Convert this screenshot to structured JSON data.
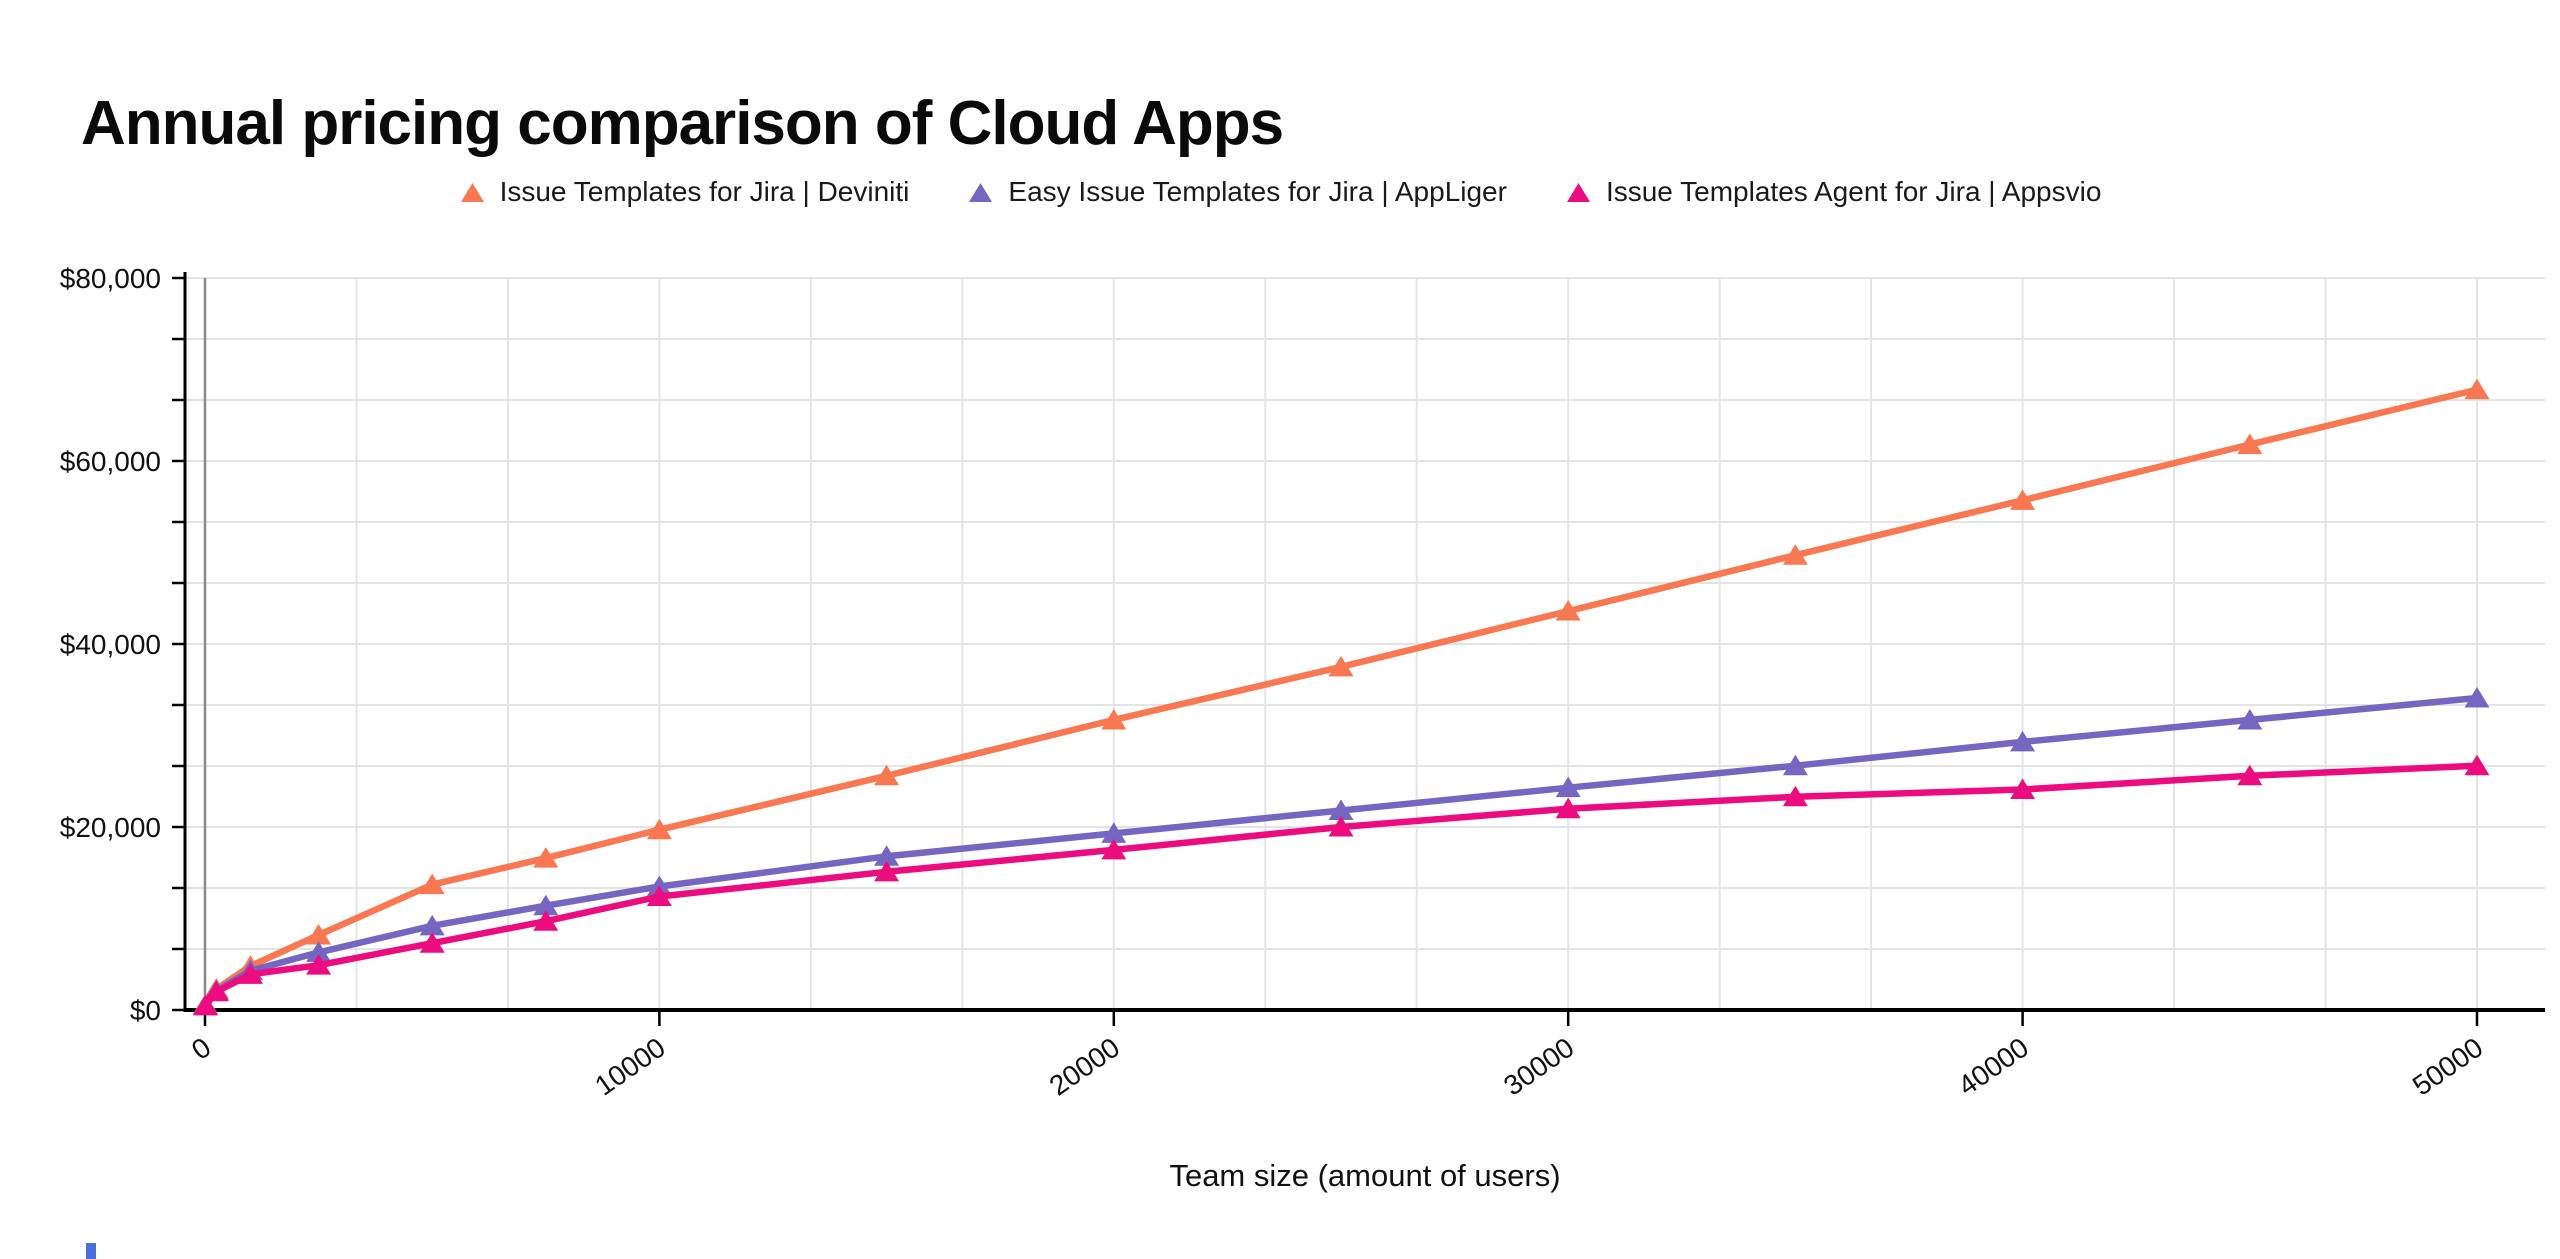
{
  "chart_data": {
    "type": "line",
    "title": "Annual pricing comparison of Cloud Apps",
    "xlabel": "Team size (amount of users)",
    "ylabel": "",
    "xlim": [
      0,
      50000
    ],
    "ylim": [
      0,
      80000
    ],
    "grid": {
      "on": true,
      "color": "#E4E4E4",
      "minor_divisions_per_major": 3,
      "zero_line_color": "#8A8A8A"
    },
    "axis_color": "#000000",
    "legend_position": "top",
    "marker_shape": "triangle-up",
    "x_ticks": {
      "values": [
        0,
        10000,
        20000,
        30000,
        40000,
        50000
      ],
      "labels": [
        "0",
        "10000",
        "20000",
        "30000",
        "40000",
        "50000"
      ]
    },
    "y_ticks": {
      "values": [
        0,
        20000,
        40000,
        60000,
        80000
      ],
      "labels": [
        "$0",
        "$20,000",
        "$40,000",
        "$60,000",
        "$80,000"
      ]
    },
    "x": [
      10,
      250,
      1000,
      2500,
      5000,
      7500,
      10000,
      15000,
      20000,
      25000,
      30000,
      35000,
      40000,
      45000,
      50000
    ],
    "series": [
      {
        "name": "Issue Templates for Jira | Deviniti",
        "color": "#F97852",
        "values": [
          600,
          2300,
          4800,
          8200,
          13700,
          16600,
          19700,
          25600,
          31700,
          37500,
          43600,
          49700,
          55700,
          61800,
          67800
        ]
      },
      {
        "name": "Easy Issue Templates for Jira | AppLiger",
        "color": "#7567C1",
        "values": [
          500,
          2100,
          4300,
          6300,
          9200,
          11400,
          13500,
          16800,
          19300,
          21800,
          24300,
          26700,
          29300,
          31700,
          34100
        ]
      },
      {
        "name": "Issue Templates Agent for Jira | Appsvio",
        "color": "#EC0C7F",
        "values": [
          450,
          2000,
          3900,
          4900,
          7300,
          9700,
          12400,
          15100,
          17500,
          20000,
          22000,
          23300,
          24100,
          25600,
          26700
        ]
      }
    ]
  }
}
